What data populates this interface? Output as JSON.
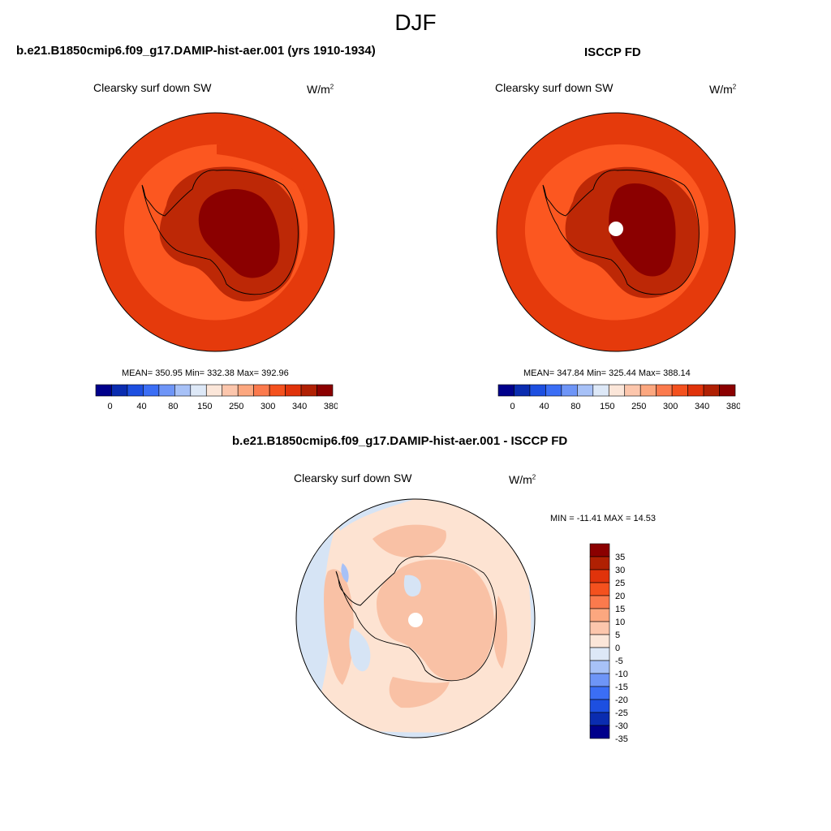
{
  "title": "DJF",
  "panels": {
    "model": {
      "header": "b.e21.B1850cmip6.f09_g17.DAMIP-hist-aer.001 (yrs 1910-1934)",
      "variable": "Clearsky surf down SW",
      "units_base": "W/m",
      "units_exp": "2",
      "stats": "MEAN= 350.95  Min= 332.38  Max= 392.96"
    },
    "obs": {
      "header": "ISCCP FD",
      "variable": "Clearsky surf down SW",
      "units_base": "W/m",
      "units_exp": "2",
      "stats": "MEAN= 347.84  Min= 325.44  Max= 388.14"
    },
    "diff": {
      "header": "b.e21.B1850cmip6.f09_g17.DAMIP-hist-aer.001 - ISCCP FD",
      "variable": "Clearsky surf down SW",
      "units_base": "W/m",
      "units_exp": "2",
      "stats": "MIN = -11.41 MAX =  14.53"
    }
  },
  "colorbar_main": {
    "colors": [
      "#00008b",
      "#0a2cb0",
      "#1d4fe0",
      "#3b6ef5",
      "#6e95f7",
      "#a7c1f7",
      "#dde8f7",
      "#fbe6d9",
      "#fcc6ac",
      "#fca77f",
      "#fb7a4d",
      "#f4511e",
      "#e0330b",
      "#b02003",
      "#8b0000"
    ],
    "tick_labels": [
      "0",
      "40",
      "80",
      "150",
      "250",
      "300",
      "340",
      "380"
    ]
  },
  "colorbar_diff": {
    "colors": [
      "#8b0000",
      "#b02003",
      "#e0330b",
      "#f4511e",
      "#fb7a4d",
      "#fca77f",
      "#fcc6ac",
      "#fbe6d9",
      "#dde8f7",
      "#a7c1f7",
      "#6e95f7",
      "#3b6ef5",
      "#1d4fe0",
      "#0a2cb0",
      "#00008b"
    ],
    "tick_labels": [
      "35",
      "30",
      "25",
      "20",
      "15",
      "10",
      "5",
      "0",
      "-5",
      "-10",
      "-15",
      "-20",
      "-25",
      "-30",
      "-35"
    ]
  },
  "map_colors": {
    "ocean_model": "#fc5720",
    "ring_model": "#e53a0c",
    "shelf": "#bd2806",
    "plateau": "#8b0000",
    "ocean_obs": "#fc5720",
    "ring_obs": "#e53a0c",
    "diff_base": "#fde3d2",
    "diff_pos": "#f9c1a5",
    "diff_neg": "#d6e4f5",
    "diff_neg_strong": "#a7c1f7"
  }
}
